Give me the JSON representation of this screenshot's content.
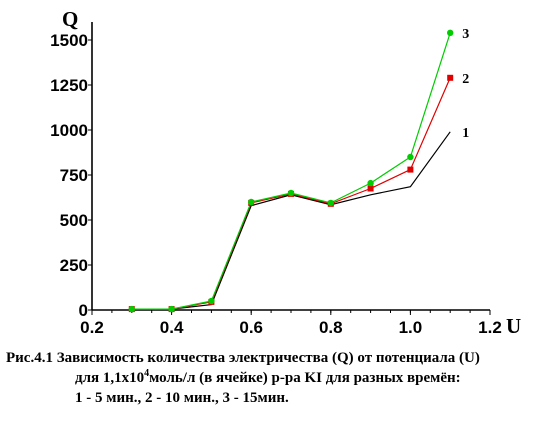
{
  "chart_data": {
    "type": "line",
    "xlabel": "U",
    "ylabel": "Q",
    "xlim": [
      0.2,
      1.2
    ],
    "ylim": [
      0,
      1600
    ],
    "xticks": [
      "0.2",
      "0.4",
      "0.6",
      "0.8",
      "1.0",
      "1.2"
    ],
    "yticks": [
      "0",
      "250",
      "500",
      "750",
      "1000",
      "1250",
      "1500"
    ],
    "grid": false,
    "series": [
      {
        "name": "1",
        "color": "#000000",
        "marker": "none",
        "x": [
          0.3,
          0.4,
          0.5,
          0.6,
          0.7,
          0.8,
          0.9,
          1.0,
          1.1
        ],
        "y": [
          5,
          5,
          30,
          580,
          640,
          585,
          640,
          685,
          990
        ]
      },
      {
        "name": "2",
        "color": "#e00000",
        "marker": "square",
        "x": [
          0.3,
          0.4,
          0.5,
          0.6,
          0.7,
          0.8,
          0.9,
          1.0,
          1.1
        ],
        "y": [
          5,
          5,
          45,
          595,
          645,
          590,
          675,
          780,
          1290
        ]
      },
      {
        "name": "3",
        "color": "#00cc00",
        "marker": "circle",
        "x": [
          0.3,
          0.4,
          0.5,
          0.6,
          0.7,
          0.8,
          0.9,
          1.0,
          1.1
        ],
        "y": [
          5,
          5,
          50,
          600,
          650,
          595,
          705,
          850,
          1540
        ]
      }
    ]
  },
  "caption": {
    "line1": "Рис.4.1  Зависимость количества электричества (Q) от потенциала (U)",
    "line2_a": "для 1,1x10",
    "line2_exp": "4",
    "line2_b": "моль/л (в ячейке) р-ра KI для разных времён:",
    "line3": "1 - 5 мин., 2 - 10 мин., 3 - 15мин."
  }
}
